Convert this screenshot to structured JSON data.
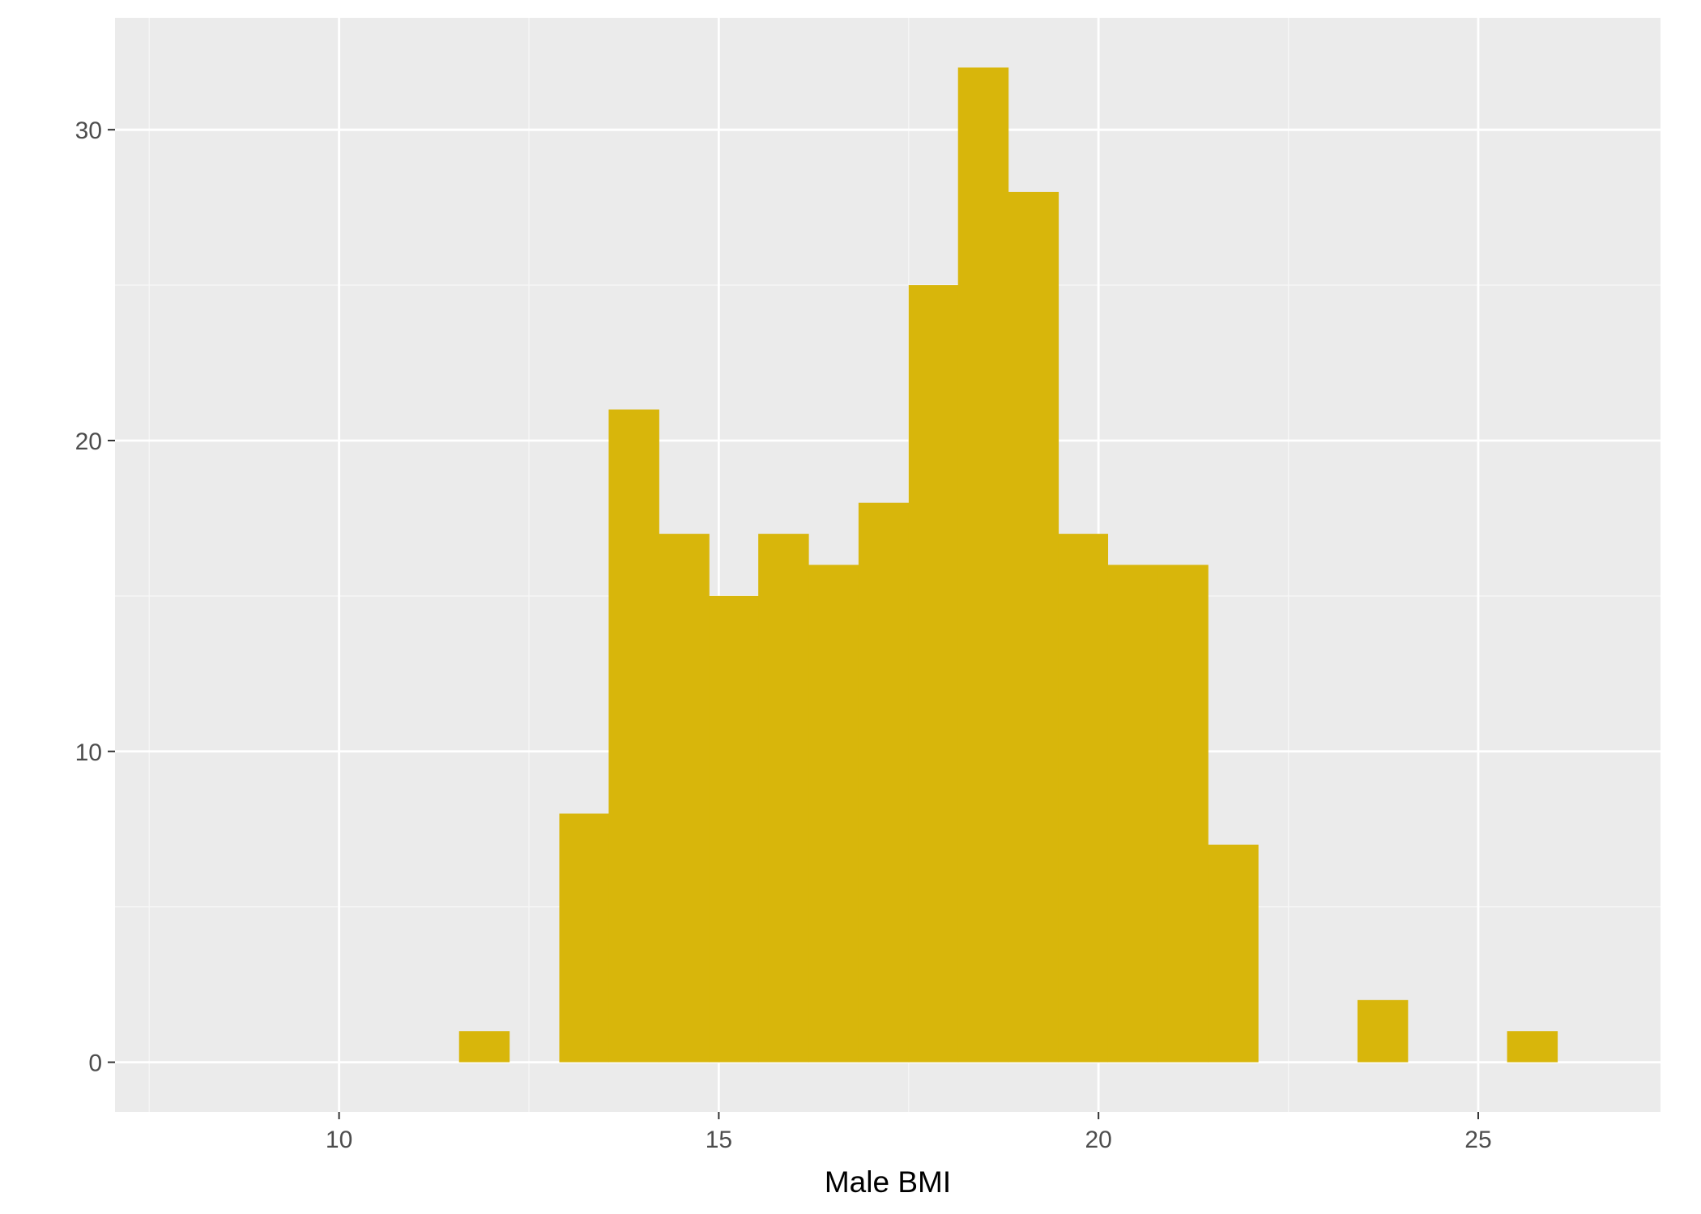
{
  "chart_data": {
    "type": "bar",
    "title": "",
    "xlabel": "Male BMI",
    "ylabel": "",
    "xlim": [
      7.05,
      27.4
    ],
    "ylim": [
      -1.6,
      33.6
    ],
    "xticks": [
      10,
      15,
      20,
      25
    ],
    "yticks": [
      0,
      10,
      20,
      30
    ],
    "grid": true,
    "bin_width": 0.657,
    "bins": [
      {
        "x0": 11.58,
        "x1": 12.24,
        "count": 1
      },
      {
        "x0": 12.9,
        "x1": 13.55,
        "count": 8
      },
      {
        "x0": 13.55,
        "x1": 14.21,
        "count": 21
      },
      {
        "x0": 14.21,
        "x1": 14.87,
        "count": 17
      },
      {
        "x0": 14.87,
        "x1": 15.52,
        "count": 15
      },
      {
        "x0": 15.52,
        "x1": 16.18,
        "count": 17
      },
      {
        "x0": 16.18,
        "x1": 16.84,
        "count": 16
      },
      {
        "x0": 16.84,
        "x1": 17.5,
        "count": 18
      },
      {
        "x0": 17.5,
        "x1": 18.15,
        "count": 25
      },
      {
        "x0": 18.15,
        "x1": 18.81,
        "count": 32
      },
      {
        "x0": 18.81,
        "x1": 19.47,
        "count": 28
      },
      {
        "x0": 19.47,
        "x1": 20.12,
        "count": 17
      },
      {
        "x0": 20.12,
        "x1": 20.78,
        "count": 16
      },
      {
        "x0": 20.78,
        "x1": 21.44,
        "count": 16
      },
      {
        "x0": 21.44,
        "x1": 22.1,
        "count": 7
      },
      {
        "x0": 23.41,
        "x1": 24.07,
        "count": 2
      },
      {
        "x0": 25.38,
        "x1": 26.04,
        "count": 1
      }
    ]
  },
  "colors": {
    "bar": "#D8B60B",
    "panel": "#EBEBEB",
    "grid_major": "#FFFFFF",
    "grid_minor": "#F6F6F6"
  }
}
